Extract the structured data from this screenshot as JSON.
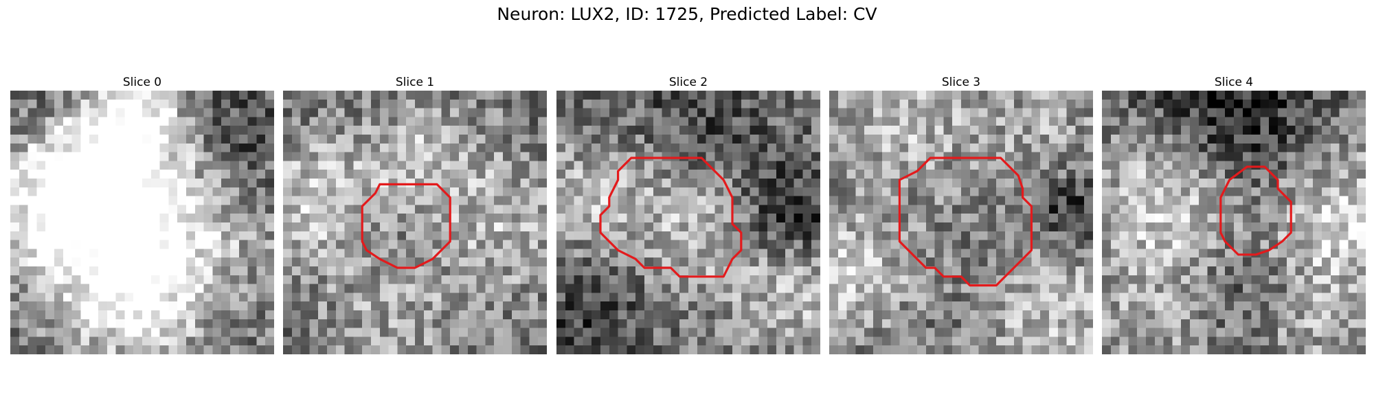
{
  "figure": {
    "title": "Neuron: LUX2, ID: 1725, Predicted Label: CV",
    "contour_color": "#e31a1c",
    "colormap": "gray",
    "slices": [
      {
        "title": "Slice 0",
        "seed": 11,
        "has_contour": false
      },
      {
        "title": "Slice 1",
        "seed": 23,
        "has_contour": true,
        "contour": [
          [
            14.5,
            10.5
          ],
          [
            17.5,
            10.5
          ],
          [
            19,
            12
          ],
          [
            19,
            17
          ],
          [
            17,
            19
          ],
          [
            16,
            19.5
          ],
          [
            15,
            20
          ],
          [
            13,
            20
          ],
          [
            12,
            19.5
          ],
          [
            11,
            19
          ],
          [
            9.5,
            18
          ],
          [
            9,
            17
          ],
          [
            9,
            13
          ],
          [
            10.5,
            11.5
          ],
          [
            11,
            10.5
          ]
        ]
      },
      {
        "title": "Slice 2",
        "seed": 37,
        "has_contour": true,
        "contour": [
          [
            8.5,
            7.5
          ],
          [
            16.5,
            7.5
          ],
          [
            19,
            10
          ],
          [
            20,
            12
          ],
          [
            20,
            15
          ],
          [
            21,
            16
          ],
          [
            21,
            18
          ],
          [
            20,
            19
          ],
          [
            19,
            21
          ],
          [
            14,
            21
          ],
          [
            13,
            20
          ],
          [
            10,
            20
          ],
          [
            9,
            19
          ],
          [
            7,
            18
          ],
          [
            6,
            17
          ],
          [
            5,
            16
          ],
          [
            5,
            14
          ],
          [
            6,
            13
          ],
          [
            6,
            12
          ],
          [
            7,
            10
          ],
          [
            7,
            9
          ]
        ]
      },
      {
        "title": "Slice 3",
        "seed": 51,
        "has_contour": true,
        "contour": [
          [
            11.5,
            7.5
          ],
          [
            19.5,
            7.5
          ],
          [
            21.5,
            9.5
          ],
          [
            22,
            11
          ],
          [
            22,
            12
          ],
          [
            23,
            13
          ],
          [
            23,
            18
          ],
          [
            22,
            19
          ],
          [
            21,
            20
          ],
          [
            20,
            21
          ],
          [
            19,
            22
          ],
          [
            16,
            22
          ],
          [
            15,
            21
          ],
          [
            13,
            21
          ],
          [
            12,
            20
          ],
          [
            11,
            20
          ],
          [
            10,
            19
          ],
          [
            9,
            18
          ],
          [
            8,
            17
          ],
          [
            8,
            10
          ],
          [
            10,
            9
          ]
        ]
      },
      {
        "title": "Slice 4",
        "seed": 67,
        "has_contour": true,
        "contour": [
          [
            16.5,
            8.5
          ],
          [
            18.5,
            8.5
          ],
          [
            20,
            10
          ],
          [
            20,
            11
          ],
          [
            21,
            12
          ],
          [
            21.5,
            12.5
          ],
          [
            21.5,
            16
          ],
          [
            20.5,
            17
          ],
          [
            19,
            18
          ],
          [
            17.5,
            18.5
          ],
          [
            15.5,
            18.5
          ],
          [
            14,
            17
          ],
          [
            13.5,
            16
          ],
          [
            13.5,
            12
          ],
          [
            14.5,
            10
          ]
        ]
      }
    ]
  }
}
